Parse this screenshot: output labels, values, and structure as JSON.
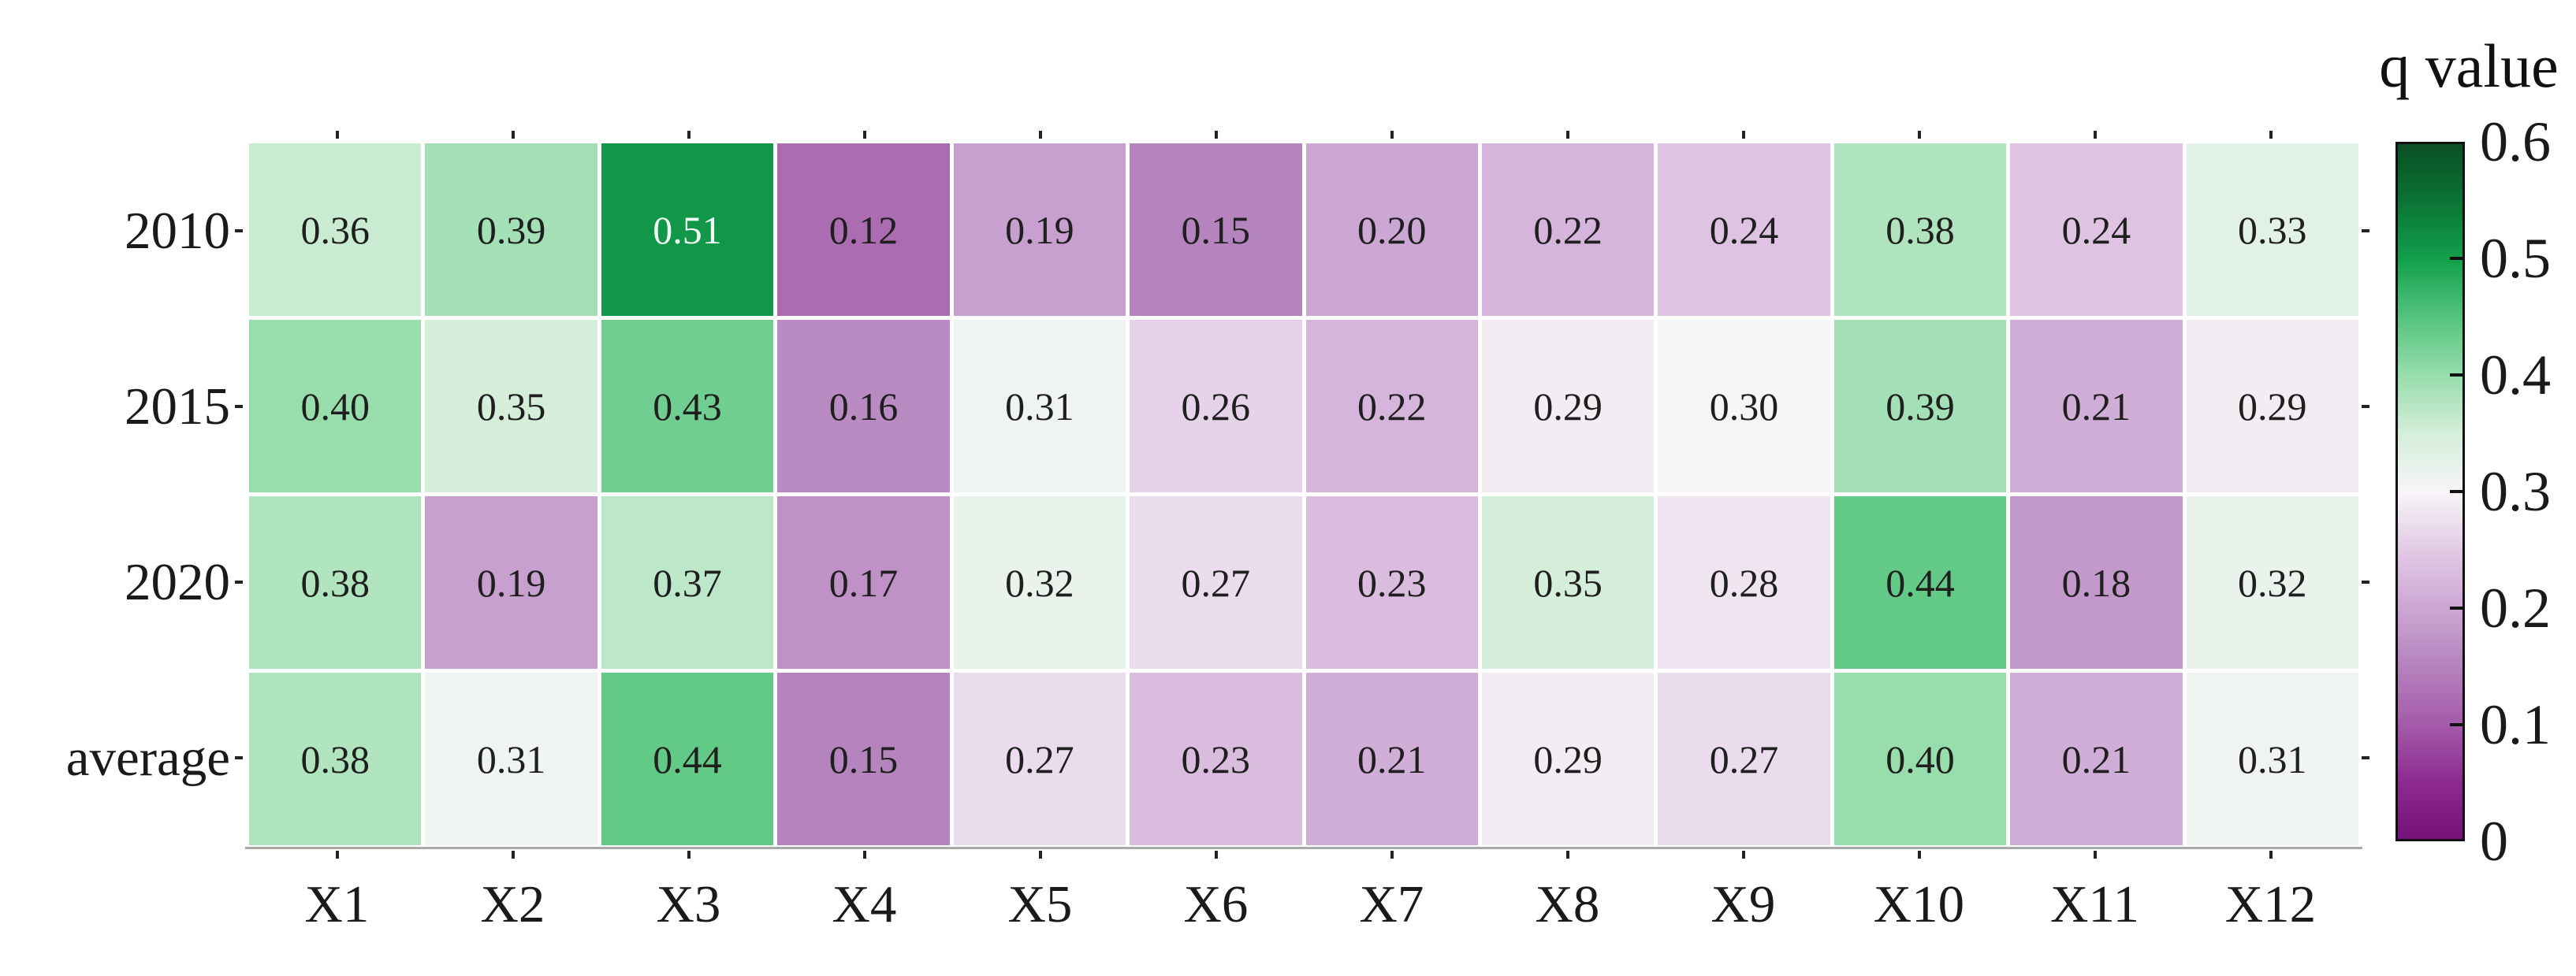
{
  "chart_data": {
    "type": "heatmap",
    "title": "",
    "x_categories": [
      "X1",
      "X2",
      "X3",
      "X4",
      "X5",
      "X6",
      "X7",
      "X8",
      "X9",
      "X10",
      "X11",
      "X12"
    ],
    "y_categories": [
      "2010",
      "2015",
      "2020",
      "average"
    ],
    "values": [
      [
        0.36,
        0.39,
        0.51,
        0.12,
        0.19,
        0.15,
        0.2,
        0.22,
        0.24,
        0.38,
        0.24,
        0.33
      ],
      [
        0.4,
        0.35,
        0.43,
        0.16,
        0.31,
        0.26,
        0.22,
        0.29,
        0.3,
        0.39,
        0.21,
        0.29
      ],
      [
        0.38,
        0.19,
        0.37,
        0.17,
        0.32,
        0.27,
        0.23,
        0.35,
        0.28,
        0.44,
        0.18,
        0.32
      ],
      [
        0.38,
        0.31,
        0.44,
        0.15,
        0.27,
        0.23,
        0.21,
        0.29,
        0.27,
        0.4,
        0.21,
        0.31
      ]
    ],
    "value_decimals": 2,
    "grid_gap": true,
    "legend_position": "right",
    "colorbar": {
      "title": "q value",
      "min": 0,
      "max": 0.6,
      "tick_labels": [
        "0.6",
        "0.5",
        "0.4",
        "0.3",
        "0.2",
        "0.1",
        "0"
      ],
      "border_color": "#111111"
    },
    "colormap_stops": [
      {
        "v": 0.0,
        "color": "#75117a"
      },
      {
        "v": 0.05,
        "color": "#8c2b90"
      },
      {
        "v": 0.1,
        "color": "#a55cab"
      },
      {
        "v": 0.15,
        "color": "#b583bd"
      },
      {
        "v": 0.2,
        "color": "#cda7d4"
      },
      {
        "v": 0.25,
        "color": "#e2cbe5"
      },
      {
        "v": 0.3,
        "color": "#f7f5f7"
      },
      {
        "v": 0.35,
        "color": "#d4eeda"
      },
      {
        "v": 0.4,
        "color": "#98ddac"
      },
      {
        "v": 0.45,
        "color": "#55c47d"
      },
      {
        "v": 0.5,
        "color": "#12a04c"
      },
      {
        "v": 0.55,
        "color": "#0b7434"
      },
      {
        "v": 0.6,
        "color": "#0a4e24"
      }
    ],
    "cell_text_color_dark": "#1f1f1f",
    "cell_text_color_light": "#f2fbf5",
    "light_text_threshold": 0.5,
    "axis_line_color": "#a9a9a9",
    "tick_color": "#222222"
  }
}
